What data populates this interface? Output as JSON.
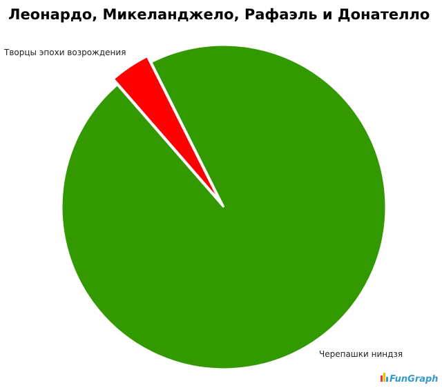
{
  "chart_data": {
    "type": "pie",
    "title": "Леонардо, Микеланджело, Рафаэль и Донателло",
    "categories": [
      "Черепашки ниндзя",
      "Творцы эпохи возрождения"
    ],
    "values": [
      96,
      4
    ],
    "colors": [
      "#339900",
      "#ff0000"
    ],
    "watermark": "FunGraph"
  }
}
